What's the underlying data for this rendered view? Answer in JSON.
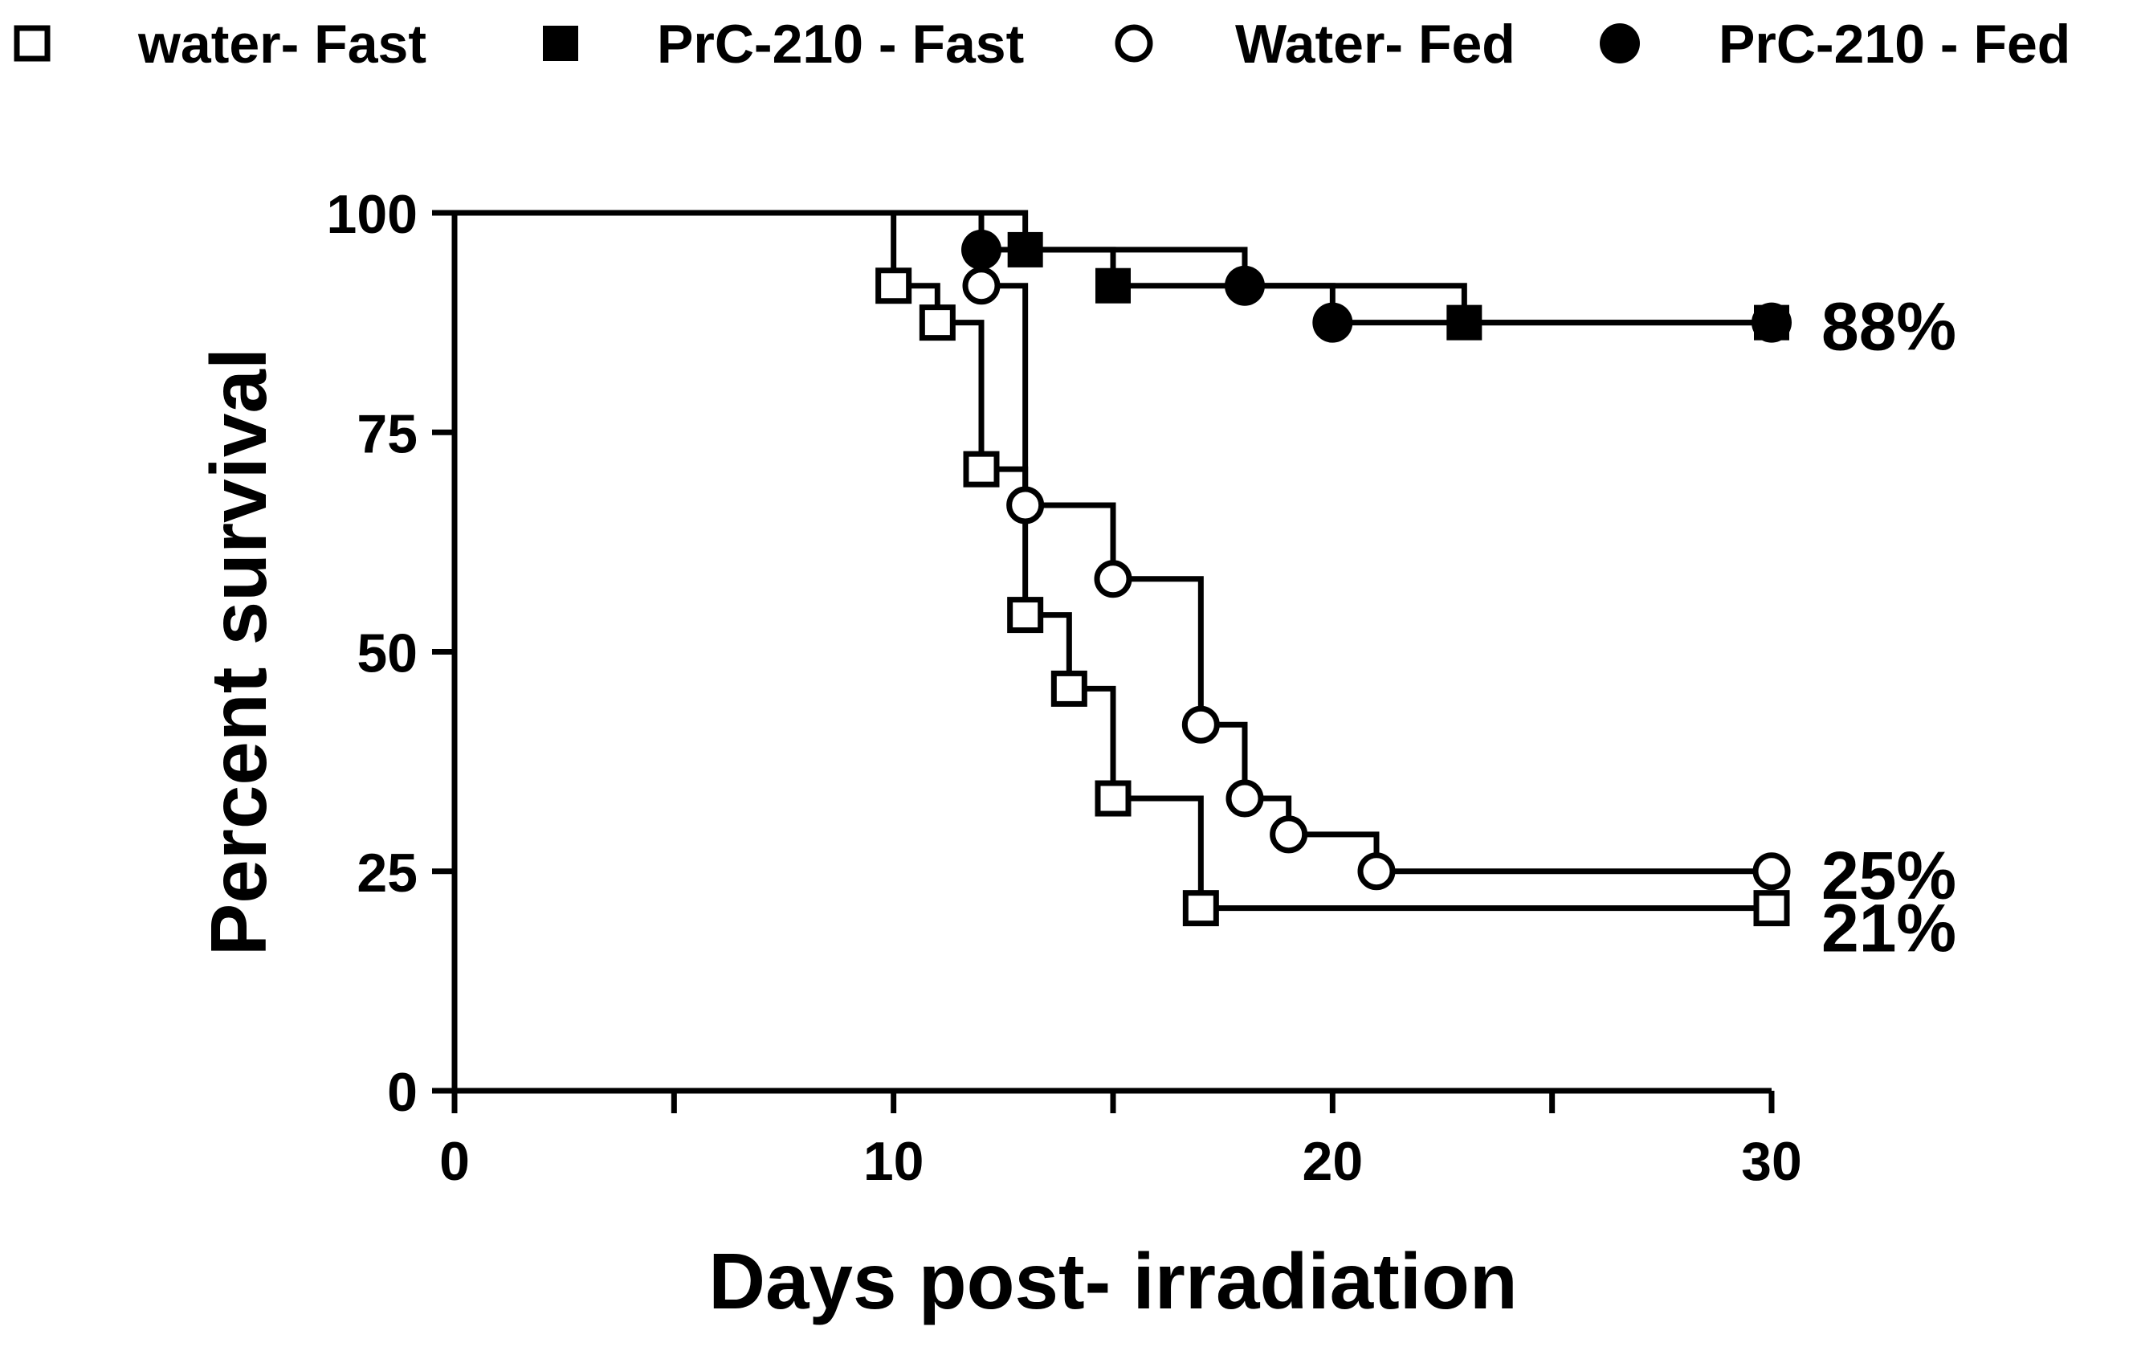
{
  "chart_data": {
    "type": "line",
    "subtype": "kaplan-meier survival",
    "title": "",
    "xlabel": "Days post- irradiation",
    "ylabel": "Percent survival",
    "xlim": [
      0,
      30
    ],
    "ylim": [
      0,
      100
    ],
    "x_ticks": [
      0,
      10,
      20,
      30
    ],
    "x_minor_ticks": [
      5,
      15,
      25
    ],
    "x_tick_labels": [
      "0",
      "10",
      "20",
      "30"
    ],
    "y_ticks": [
      0,
      25,
      50,
      75,
      100
    ],
    "y_tick_labels": [
      "0",
      "25",
      "50",
      "75",
      "100"
    ],
    "grid": false,
    "legend_position": "top",
    "series": [
      {
        "name": "water- Fast",
        "marker": "open-square",
        "x": [
          0,
          10,
          11,
          12,
          13,
          14,
          15,
          17,
          30
        ],
        "y": [
          100,
          91.7,
          87.5,
          70.8,
          54.2,
          45.8,
          33.3,
          20.8,
          20.8
        ],
        "final_label": "21%"
      },
      {
        "name": "PrC-210 - Fast",
        "marker": "filled-square",
        "x": [
          0,
          13,
          15,
          23,
          30
        ],
        "y": [
          100,
          95.8,
          91.7,
          87.5,
          87.5
        ],
        "final_label": ""
      },
      {
        "name": "Water- Fed",
        "marker": "open-circle",
        "x": [
          0,
          12,
          13,
          15,
          17,
          18,
          19,
          21,
          30
        ],
        "y": [
          100,
          91.7,
          66.7,
          58.3,
          41.7,
          33.3,
          29.2,
          25,
          25
        ],
        "final_label": "25%"
      },
      {
        "name": "PrC-210 - Fed",
        "marker": "filled-circle",
        "x": [
          0,
          12,
          18,
          20,
          30
        ],
        "y": [
          100,
          95.8,
          91.7,
          87.5,
          87.5
        ],
        "final_label": "88%"
      }
    ]
  }
}
